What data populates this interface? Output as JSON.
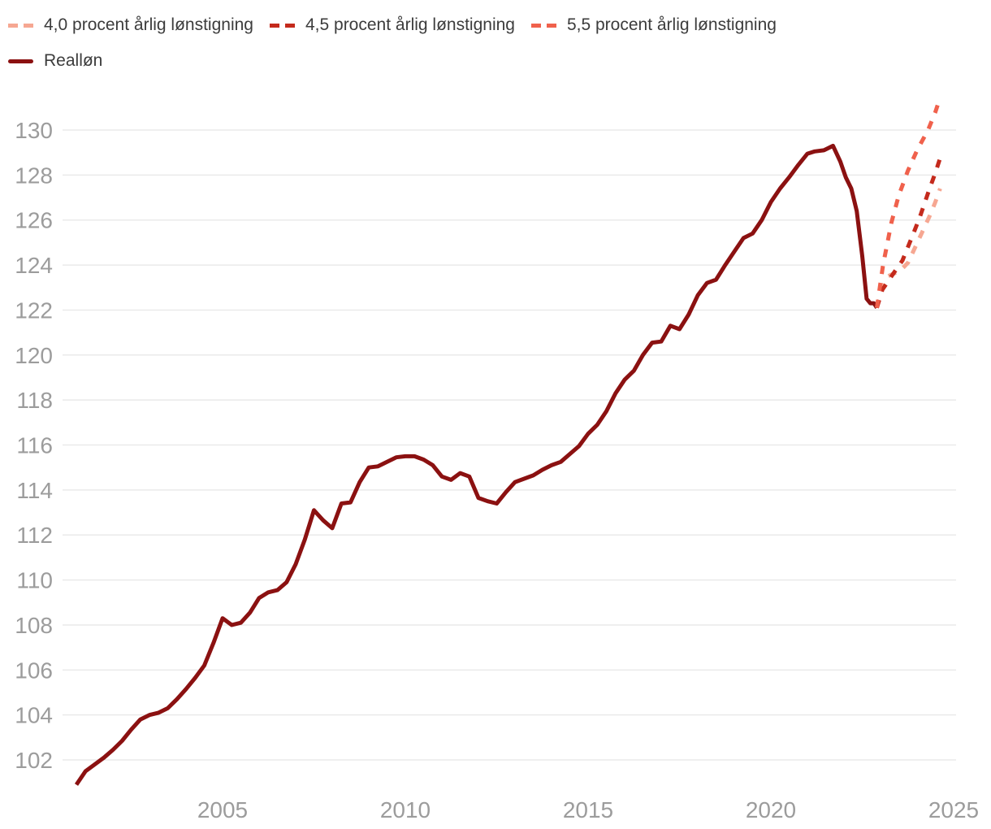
{
  "legend": {
    "items": [
      {
        "label": "4,0 procent årlig lønstigning",
        "color": "#F6A792",
        "style": "dashed"
      },
      {
        "label": "4,5 procent årlig lønstigning",
        "color": "#C42A1C",
        "style": "dashed"
      },
      {
        "label": "5,5 procent årlig lønstigning",
        "color": "#F0614C",
        "style": "dashed"
      },
      {
        "label": "Realløn",
        "color": "#8B1111",
        "style": "solid"
      }
    ]
  },
  "chart_data": {
    "type": "line",
    "title": "",
    "xlabel": "",
    "ylabel": "",
    "x_ticks": [
      2005,
      2010,
      2015,
      2020,
      2025
    ],
    "y_ticks": [
      102,
      104,
      106,
      108,
      110,
      112,
      114,
      116,
      118,
      120,
      122,
      124,
      126,
      128,
      130
    ],
    "x_range": [
      2000.9,
      2025.4
    ],
    "y_range": [
      100.5,
      131.6
    ],
    "grid": "horizontal-only",
    "grid_color": "#EAEAEA",
    "tick_label_color": "#9C9C9C",
    "legend_position": "top-left",
    "series": [
      {
        "name": "Realløn",
        "color": "#8B1111",
        "dash": "none",
        "points": [
          [
            2001.0,
            100.9
          ],
          [
            2001.25,
            101.5
          ],
          [
            2001.5,
            101.8
          ],
          [
            2001.75,
            102.1
          ],
          [
            2002.0,
            102.45
          ],
          [
            2002.25,
            102.85
          ],
          [
            2002.5,
            103.35
          ],
          [
            2002.75,
            103.8
          ],
          [
            2003.0,
            104.0
          ],
          [
            2003.25,
            104.1
          ],
          [
            2003.5,
            104.3
          ],
          [
            2003.75,
            104.7
          ],
          [
            2004.0,
            105.15
          ],
          [
            2004.25,
            105.65
          ],
          [
            2004.5,
            106.2
          ],
          [
            2004.75,
            107.2
          ],
          [
            2005.0,
            108.3
          ],
          [
            2005.25,
            108.0
          ],
          [
            2005.5,
            108.1
          ],
          [
            2005.75,
            108.55
          ],
          [
            2006.0,
            109.2
          ],
          [
            2006.25,
            109.45
          ],
          [
            2006.5,
            109.55
          ],
          [
            2006.75,
            109.9
          ],
          [
            2007.0,
            110.7
          ],
          [
            2007.25,
            111.8
          ],
          [
            2007.5,
            113.1
          ],
          [
            2007.75,
            112.65
          ],
          [
            2008.0,
            112.3
          ],
          [
            2008.25,
            113.4
          ],
          [
            2008.5,
            113.45
          ],
          [
            2008.75,
            114.35
          ],
          [
            2009.0,
            115.0
          ],
          [
            2009.25,
            115.05
          ],
          [
            2009.5,
            115.25
          ],
          [
            2009.75,
            115.45
          ],
          [
            2010.0,
            115.5
          ],
          [
            2010.25,
            115.5
          ],
          [
            2010.5,
            115.35
          ],
          [
            2010.75,
            115.1
          ],
          [
            2011.0,
            114.6
          ],
          [
            2011.25,
            114.45
          ],
          [
            2011.5,
            114.75
          ],
          [
            2011.75,
            114.6
          ],
          [
            2012.0,
            113.65
          ],
          [
            2012.25,
            113.5
          ],
          [
            2012.5,
            113.4
          ],
          [
            2012.75,
            113.9
          ],
          [
            2013.0,
            114.35
          ],
          [
            2013.25,
            114.5
          ],
          [
            2013.5,
            114.65
          ],
          [
            2013.75,
            114.9
          ],
          [
            2014.0,
            115.1
          ],
          [
            2014.25,
            115.25
          ],
          [
            2014.5,
            115.6
          ],
          [
            2014.75,
            115.95
          ],
          [
            2015.0,
            116.5
          ],
          [
            2015.25,
            116.9
          ],
          [
            2015.5,
            117.5
          ],
          [
            2015.75,
            118.3
          ],
          [
            2016.0,
            118.9
          ],
          [
            2016.25,
            119.3
          ],
          [
            2016.5,
            120.0
          ],
          [
            2016.75,
            120.55
          ],
          [
            2017.0,
            120.6
          ],
          [
            2017.25,
            121.3
          ],
          [
            2017.5,
            121.15
          ],
          [
            2017.75,
            121.8
          ],
          [
            2018.0,
            122.65
          ],
          [
            2018.25,
            123.2
          ],
          [
            2018.5,
            123.35
          ],
          [
            2018.75,
            124.0
          ],
          [
            2019.0,
            124.6
          ],
          [
            2019.25,
            125.2
          ],
          [
            2019.5,
            125.4
          ],
          [
            2019.75,
            126.0
          ],
          [
            2020.0,
            126.8
          ],
          [
            2020.25,
            127.4
          ],
          [
            2020.5,
            127.9
          ],
          [
            2020.75,
            128.45
          ],
          [
            2021.0,
            128.95
          ],
          [
            2021.2,
            129.05
          ],
          [
            2021.45,
            129.1
          ],
          [
            2021.7,
            129.3
          ],
          [
            2021.9,
            128.6
          ],
          [
            2022.05,
            127.9
          ],
          [
            2022.2,
            127.4
          ],
          [
            2022.35,
            126.4
          ],
          [
            2022.5,
            124.4
          ],
          [
            2022.62,
            122.5
          ],
          [
            2022.72,
            122.3
          ],
          [
            2022.82,
            122.3
          ],
          [
            2022.9,
            122.1
          ]
        ]
      },
      {
        "name": "4,0 procent årlig lønstigning",
        "color": "#F6A792",
        "dash": "10 11",
        "points": [
          [
            2022.9,
            122.1
          ],
          [
            2023.05,
            123.0
          ],
          [
            2023.2,
            123.5
          ],
          [
            2023.4,
            123.65
          ],
          [
            2023.6,
            123.85
          ],
          [
            2023.75,
            124.1
          ],
          [
            2023.95,
            124.8
          ],
          [
            2024.15,
            125.5
          ],
          [
            2024.35,
            126.2
          ],
          [
            2024.5,
            126.8
          ],
          [
            2024.63,
            127.4
          ]
        ]
      },
      {
        "name": "4,5 procent årlig lønstigning",
        "color": "#C42A1C",
        "dash": "10 11",
        "points": [
          [
            2022.9,
            122.1
          ],
          [
            2023.05,
            122.9
          ],
          [
            2023.3,
            123.5
          ],
          [
            2023.6,
            124.2
          ],
          [
            2023.85,
            125.2
          ],
          [
            2024.07,
            126.1
          ],
          [
            2024.3,
            127.2
          ],
          [
            2024.5,
            128.1
          ],
          [
            2024.62,
            128.7
          ]
        ]
      },
      {
        "name": "5,5 procent årlig lønstigning",
        "color": "#F0614C",
        "dash": "10 11",
        "points": [
          [
            2022.9,
            122.1
          ],
          [
            2023.07,
            124.0
          ],
          [
            2023.3,
            125.9
          ],
          [
            2023.5,
            127.1
          ],
          [
            2023.75,
            128.2
          ],
          [
            2024.0,
            129.1
          ],
          [
            2024.3,
            130.0
          ],
          [
            2024.5,
            130.8
          ],
          [
            2024.63,
            131.45
          ]
        ]
      }
    ]
  }
}
